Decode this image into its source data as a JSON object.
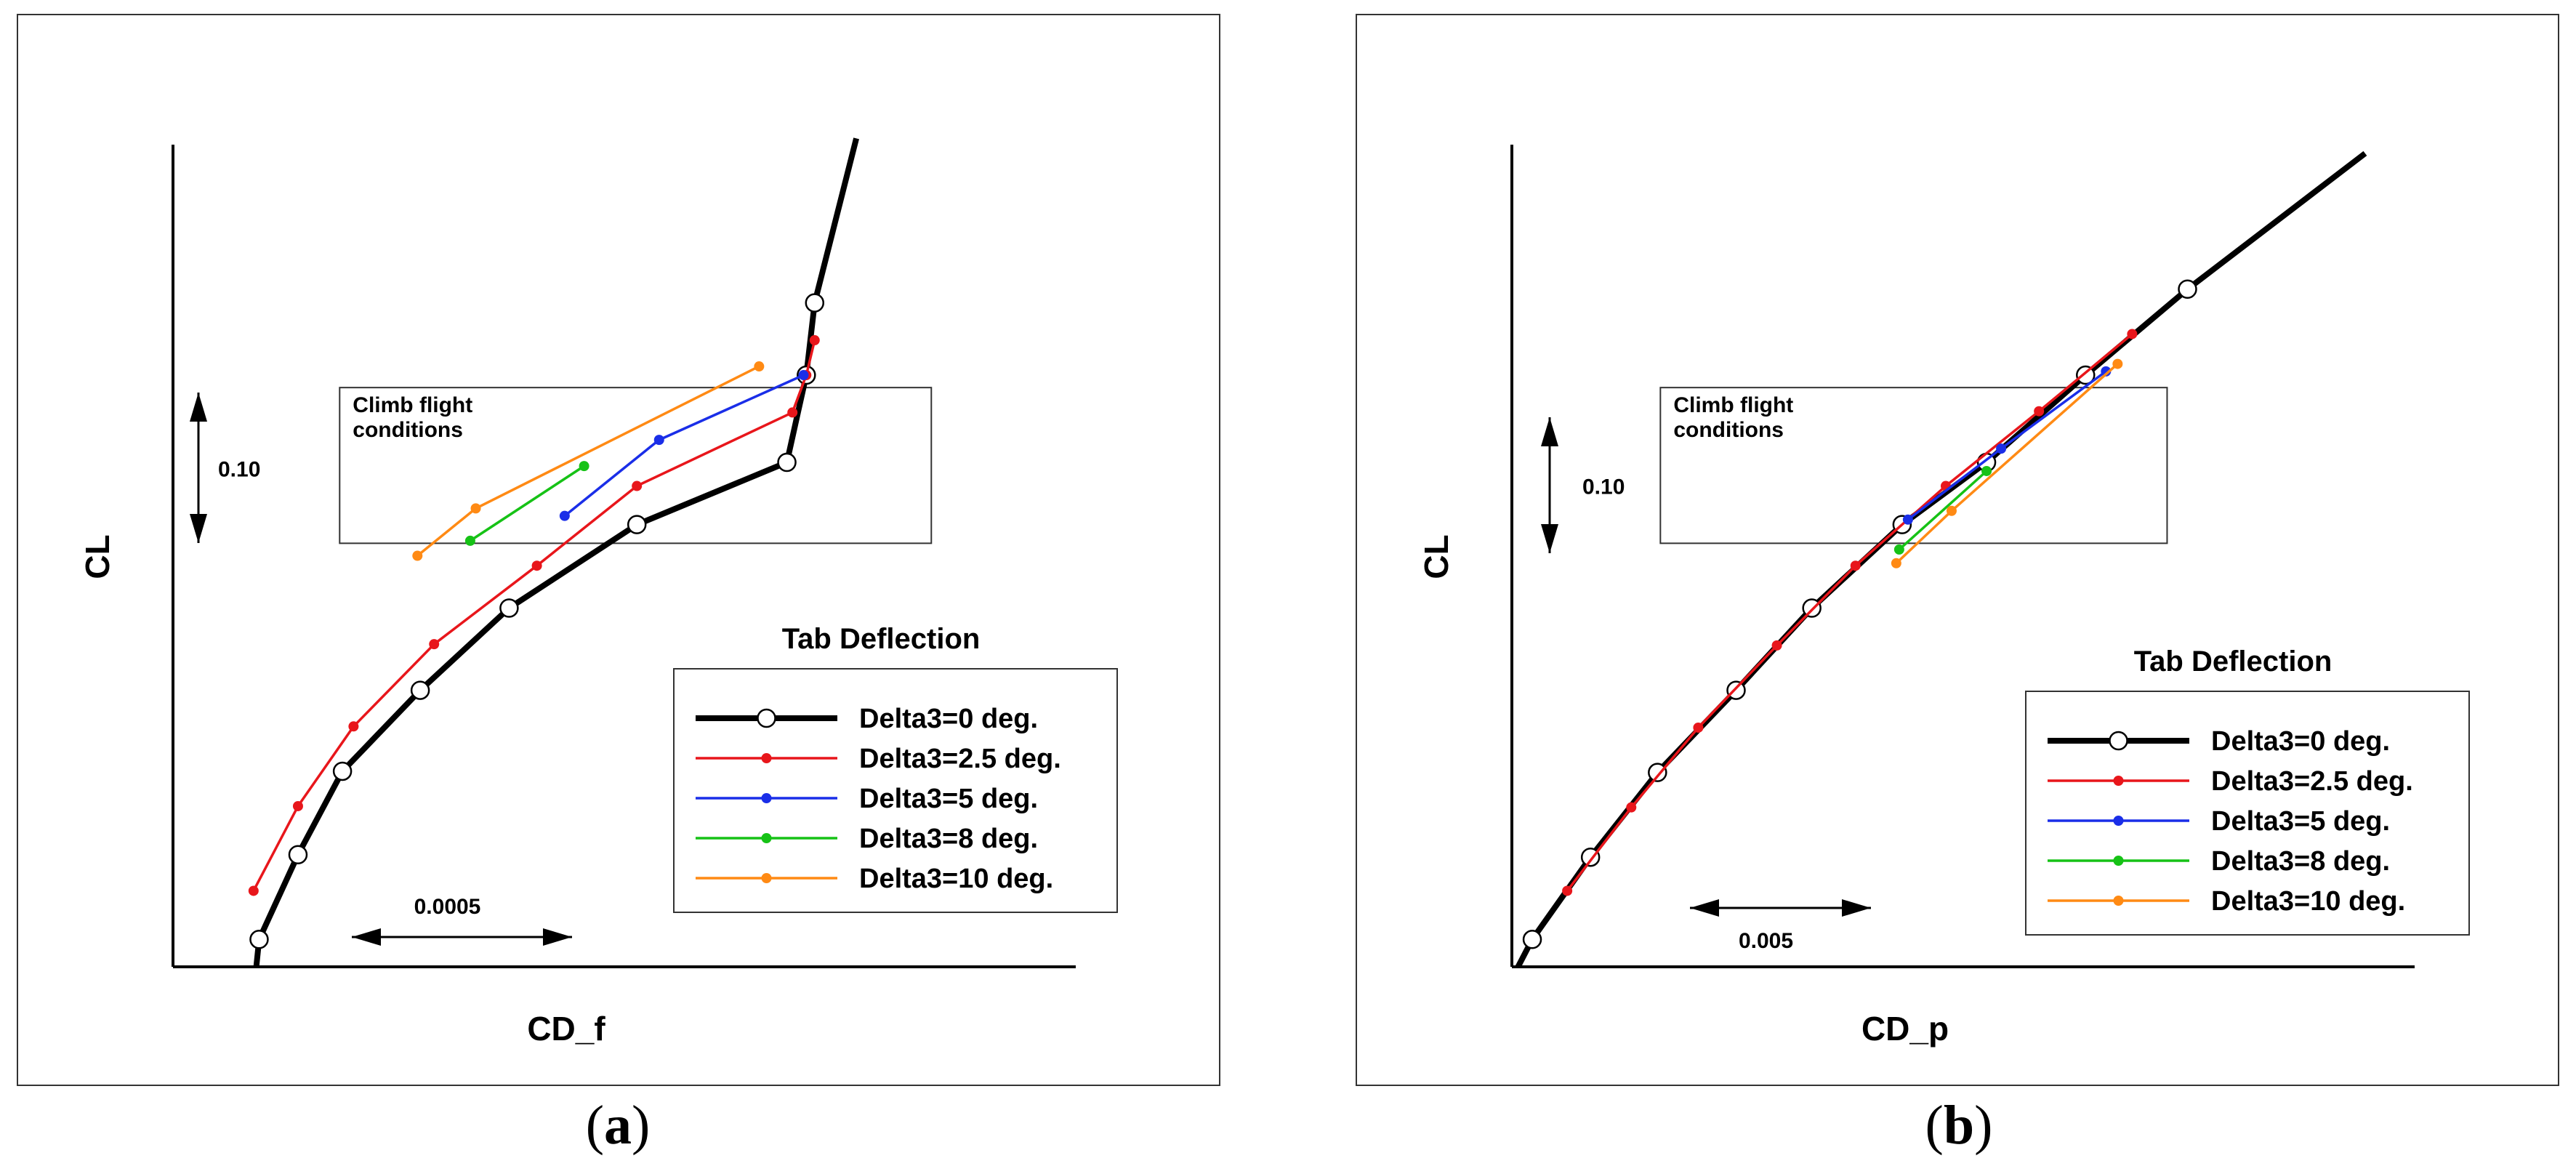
{
  "figure": {
    "captions": [
      "(a)",
      "(b)"
    ],
    "caption_parts": [
      {
        "open": "(",
        "letter": "a",
        "close": ")"
      },
      {
        "open": "(",
        "letter": "b",
        "close": ")"
      }
    ]
  },
  "colors": {
    "Delta3=0 deg.": "#000000",
    "Delta3=2.5 deg.": "#e8161b",
    "Delta3=5 deg.": "#1a2ee8",
    "Delta3=8 deg.": "#16c216",
    "Delta3=10 deg.": "#ff8a14",
    "box": "#333333"
  },
  "chart_data": [
    {
      "type": "line",
      "caption": "(a)",
      "xlabel": "CD_f",
      "ylabel": "CL",
      "xlim": [
        0.0,
        0.00325
      ],
      "ylim": [
        0.0,
        0.66
      ],
      "scale_bars": {
        "x": "0.0005",
        "y": "0.10"
      },
      "box_label": [
        "Climb flight",
        "conditions"
      ],
      "box_range": {
        "x": [
          0.0006,
          0.00273
        ],
        "y": [
          0.34,
          0.465
        ]
      },
      "legend_title": "Tab Deflection",
      "legend_position": "bottom-right",
      "series": [
        {
          "name": "Delta3=0 deg.",
          "marker": "open-circle",
          "points": [
            [
              0.0003,
              0.0
            ],
            [
              0.00031,
              0.022
            ],
            [
              0.00045,
              0.09
            ],
            [
              0.00061,
              0.157
            ],
            [
              0.00089,
              0.222
            ],
            [
              0.00121,
              0.288
            ],
            [
              0.00167,
              0.355
            ],
            [
              0.00221,
              0.405
            ],
            [
              0.00225,
              0.445
            ],
            [
              0.00228,
              0.475
            ],
            [
              0.00231,
              0.533
            ],
            [
              0.00246,
              0.665
            ]
          ],
          "marked": [
            [
              0.00031,
              0.022
            ],
            [
              0.00045,
              0.09
            ],
            [
              0.00061,
              0.157
            ],
            [
              0.00089,
              0.222
            ],
            [
              0.00121,
              0.288
            ],
            [
              0.00167,
              0.355
            ],
            [
              0.00221,
              0.405
            ],
            [
              0.00228,
              0.475
            ],
            [
              0.00231,
              0.533
            ]
          ]
        },
        {
          "name": "Delta3=2.5 deg.",
          "marker": "dot",
          "points": [
            [
              0.00029,
              0.061
            ],
            [
              0.00045,
              0.129
            ],
            [
              0.00065,
              0.193
            ],
            [
              0.00094,
              0.259
            ],
            [
              0.00131,
              0.322
            ],
            [
              0.00167,
              0.386
            ],
            [
              0.00223,
              0.445
            ],
            [
              0.00228,
              0.475
            ],
            [
              0.00231,
              0.503
            ]
          ]
        },
        {
          "name": "Delta3=5 deg.",
          "marker": "dot",
          "points": [
            [
              0.00141,
              0.362
            ],
            [
              0.00175,
              0.423
            ],
            [
              0.00227,
              0.475
            ]
          ]
        },
        {
          "name": "Delta3=8 deg.",
          "marker": "dot",
          "points": [
            [
              0.00107,
              0.342
            ],
            [
              0.00148,
              0.402
            ]
          ]
        },
        {
          "name": "Delta3=10 deg.",
          "marker": "dot",
          "points": [
            [
              0.00088,
              0.33
            ],
            [
              0.00109,
              0.368
            ],
            [
              0.00211,
              0.482
            ]
          ]
        }
      ]
    },
    {
      "type": "line",
      "caption": "(b)",
      "xlabel": "CD_p",
      "ylabel": "CL",
      "xlim": [
        0.0,
        0.031
      ],
      "ylim": [
        0.0,
        0.66
      ],
      "scale_bars": {
        "x": "0.005",
        "y": "0.10"
      },
      "box_label": [
        "Climb flight",
        "conditions"
      ],
      "box_range": {
        "x": [
          0.0051,
          0.0225
        ],
        "y": [
          0.34,
          0.465
        ]
      },
      "legend_title": "Tab Deflection",
      "legend_position": "bottom-right",
      "series": [
        {
          "name": "Delta3=0 deg.",
          "marker": "open-circle",
          "points": [
            [
              0.0001,
              -0.005
            ],
            [
              0.0007,
              0.022
            ],
            [
              0.0027,
              0.088
            ],
            [
              0.005,
              0.156
            ],
            [
              0.0077,
              0.222
            ],
            [
              0.0103,
              0.288
            ],
            [
              0.0134,
              0.355
            ],
            [
              0.0163,
              0.405
            ],
            [
              0.0197,
              0.475
            ],
            [
              0.0232,
              0.544
            ],
            [
              0.0293,
              0.653
            ]
          ],
          "marked": [
            [
              0.0007,
              0.022
            ],
            [
              0.0027,
              0.088
            ],
            [
              0.005,
              0.156
            ],
            [
              0.0077,
              0.222
            ],
            [
              0.0103,
              0.288
            ],
            [
              0.0134,
              0.355
            ],
            [
              0.0163,
              0.405
            ],
            [
              0.0197,
              0.475
            ],
            [
              0.0232,
              0.544
            ]
          ]
        },
        {
          "name": "Delta3=2.5 deg.",
          "marker": "dot",
          "points": [
            [
              0.0019,
              0.061
            ],
            [
              0.0041,
              0.128
            ],
            [
              0.0064,
              0.192
            ],
            [
              0.0091,
              0.258
            ],
            [
              0.0118,
              0.322
            ],
            [
              0.0149,
              0.386
            ],
            [
              0.0181,
              0.446
            ],
            [
              0.0213,
              0.508
            ]
          ]
        },
        {
          "name": "Delta3=5 deg.",
          "marker": "dot",
          "points": [
            [
              0.0136,
              0.359
            ],
            [
              0.0168,
              0.416
            ],
            [
              0.0204,
              0.478
            ]
          ]
        },
        {
          "name": "Delta3=8 deg.",
          "marker": "dot",
          "points": [
            [
              0.0133,
              0.335
            ],
            [
              0.0163,
              0.398
            ]
          ]
        },
        {
          "name": "Delta3=10 deg.",
          "marker": "dot",
          "points": [
            [
              0.0132,
              0.324
            ],
            [
              0.0151,
              0.366
            ],
            [
              0.0208,
              0.484
            ]
          ]
        }
      ]
    }
  ]
}
